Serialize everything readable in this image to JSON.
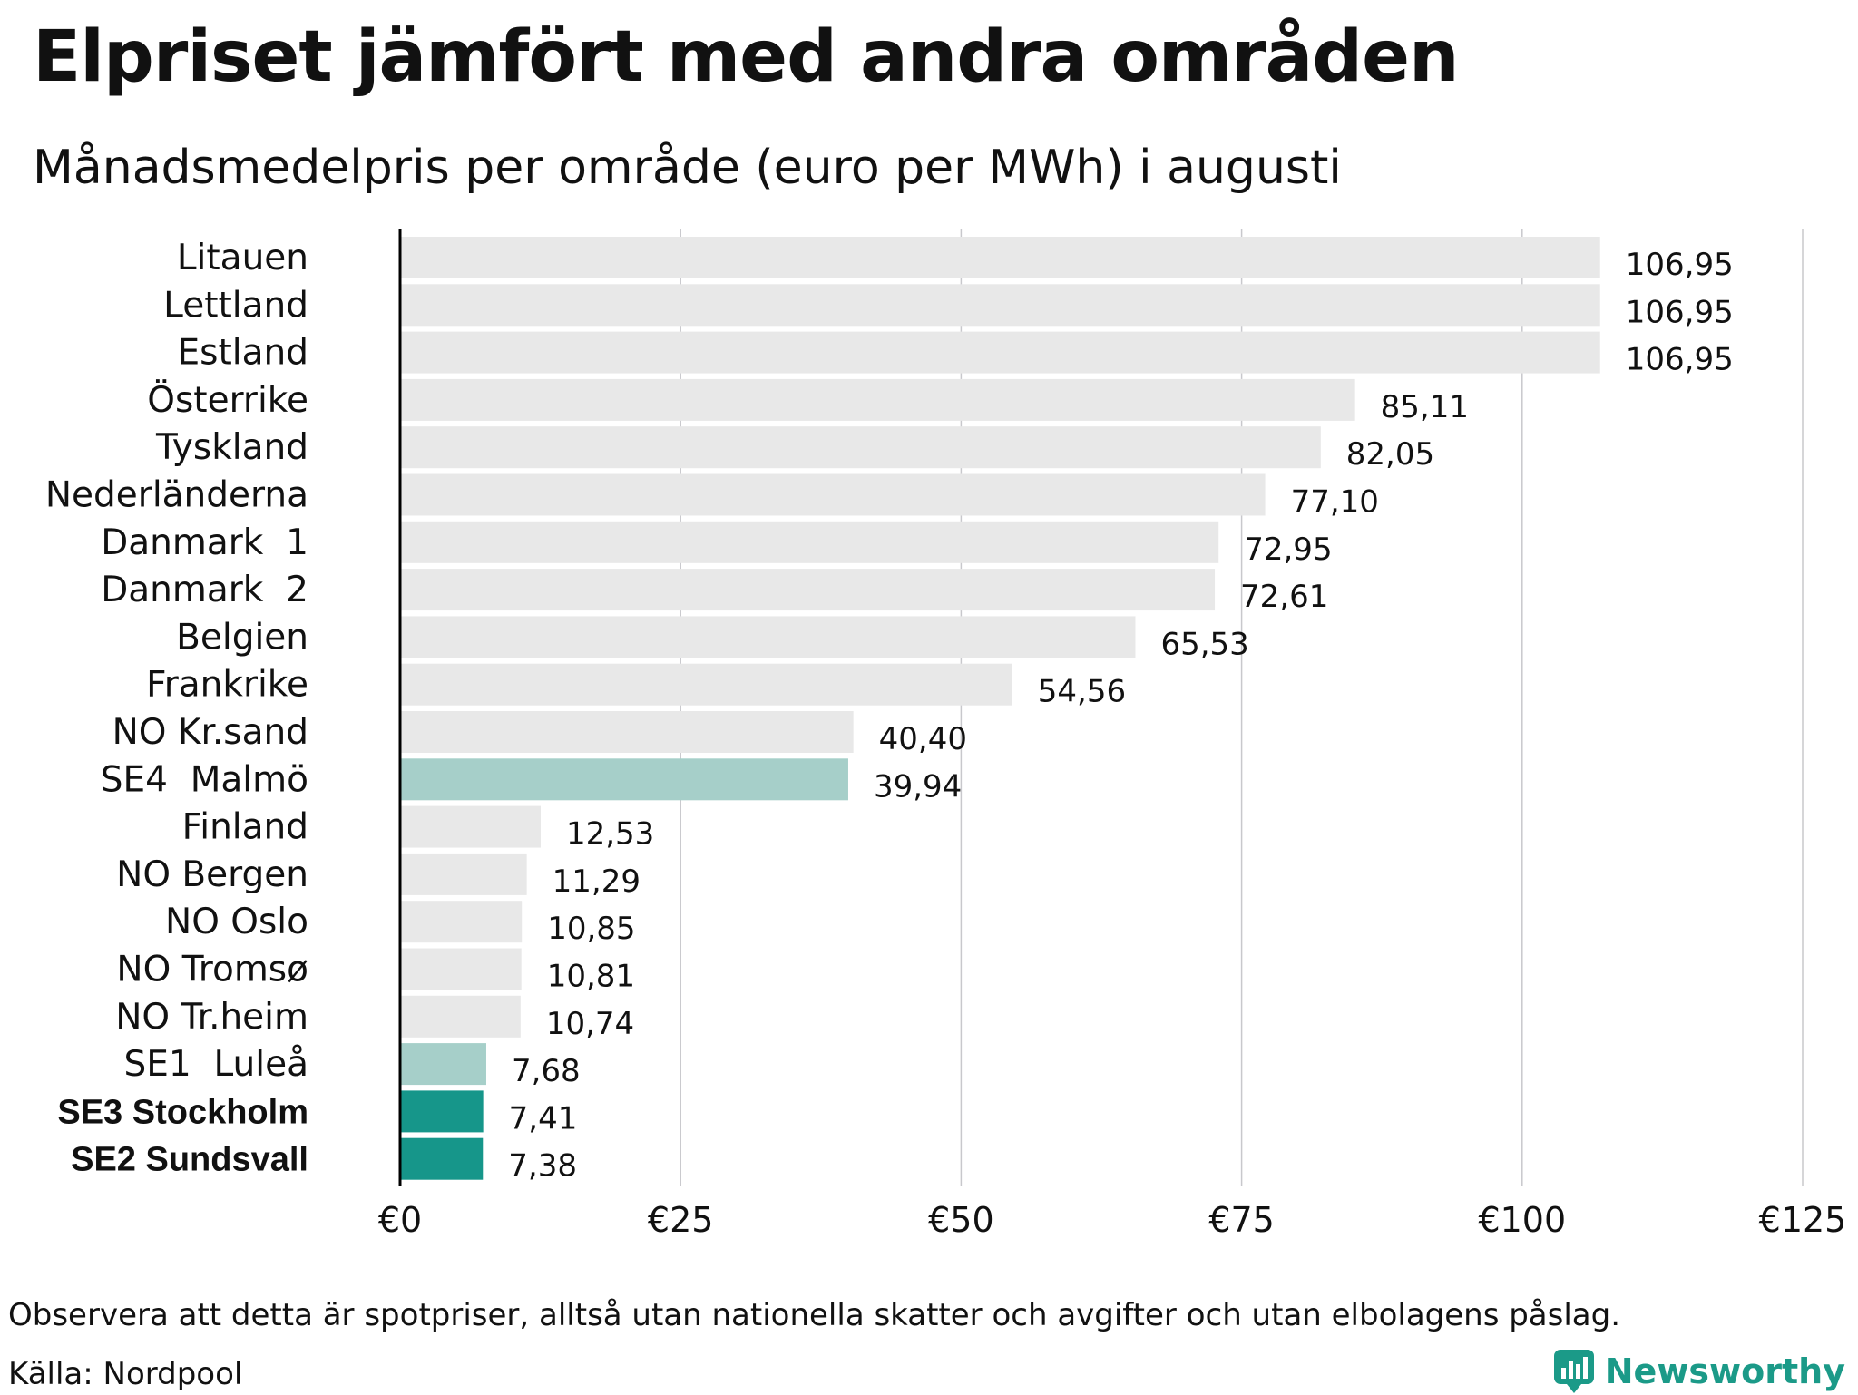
{
  "title": "Elpriset jämfört med andra områden",
  "subtitle": "Månadsmedelpris per område (euro per MWh) i augusti",
  "footnote": "Observera att detta är spotpriser, alltså utan nationella skatter och avgifter och utan elbolagens påslag.",
  "source": "Källa: Nordpool",
  "brand": {
    "name": "Newsworthy",
    "icon": "newsworthy-logo-icon"
  },
  "colors": {
    "default": "#e8e8e8",
    "highlight_light": "#a6cfc9",
    "highlight_dark": "#16968a",
    "axis": "#000000",
    "grid": "#c8c8cc"
  },
  "chart_data": {
    "type": "bar",
    "orientation": "horizontal",
    "categories": [
      "Litauen",
      "Lettland",
      "Estland",
      "Österrike",
      "Tyskland",
      "Nederländerna",
      "Danmark  1",
      "Danmark  2",
      "Belgien",
      "Frankrike",
      "NO Kr.sand",
      "SE4  Malmö",
      "Finland",
      "NO Bergen",
      "NO Oslo",
      "NO Tromsø",
      "NO Tr.heim",
      "SE1  Luleå",
      "SE3 Stockholm",
      "SE2 Sundsvall"
    ],
    "values": [
      106.95,
      106.95,
      106.95,
      85.11,
      82.05,
      77.1,
      72.95,
      72.61,
      65.53,
      54.56,
      40.4,
      39.94,
      12.53,
      11.29,
      10.85,
      10.81,
      10.74,
      7.68,
      7.41,
      7.38
    ],
    "value_labels": [
      "106,95",
      "106,95",
      "106,95",
      "85,11",
      "82,05",
      "77,10",
      "72,95",
      "72,61",
      "65,53",
      "54,56",
      "40,40",
      "39,94",
      "12,53",
      "11,29",
      "10,85",
      "10,81",
      "10,74",
      "7,68",
      "7,41",
      "7,38"
    ],
    "highlight": [
      "none",
      "none",
      "none",
      "none",
      "none",
      "none",
      "none",
      "none",
      "none",
      "none",
      "none",
      "light",
      "none",
      "none",
      "none",
      "none",
      "none",
      "light",
      "dark",
      "dark"
    ],
    "bold_labels": [
      "SE3 Stockholm",
      "SE2 Sundsvall"
    ],
    "xlim": [
      0,
      125
    ],
    "xticks": [
      0,
      25,
      50,
      75,
      100,
      125
    ],
    "xtick_labels": [
      "€0",
      "€25",
      "€50",
      "€75",
      "€100",
      "€125"
    ],
    "grid": true,
    "legend": false
  }
}
